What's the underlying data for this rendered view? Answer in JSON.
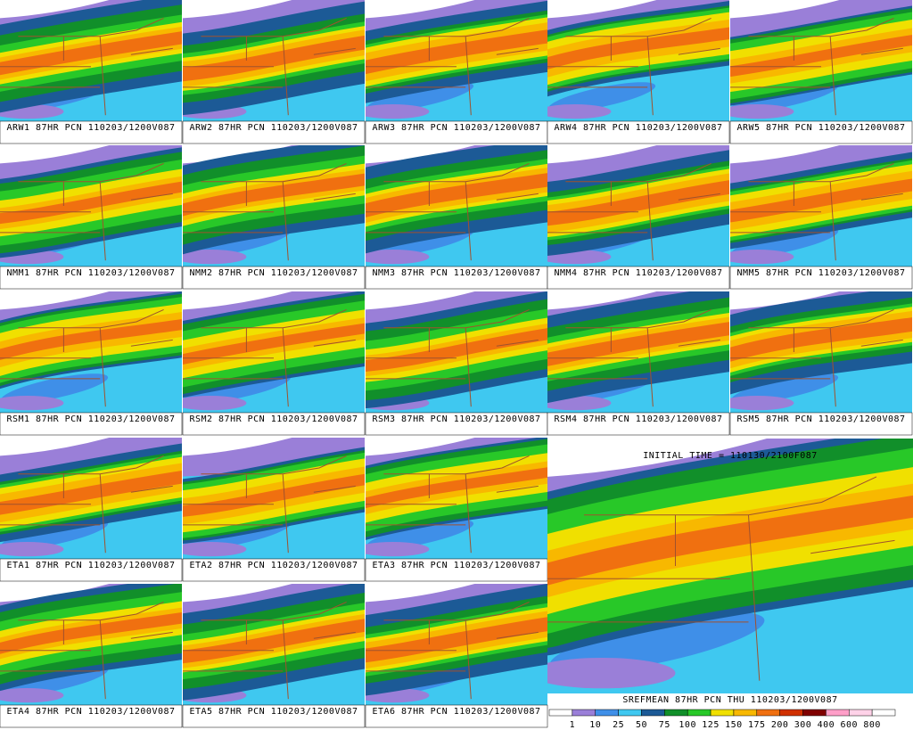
{
  "panels": [
    {
      "label": "ARW1 87HR PCN 110203/1200V087"
    },
    {
      "label": "ARW2 87HR PCN 110203/1200V087"
    },
    {
      "label": "ARW3 87HR PCN 110203/1200V087"
    },
    {
      "label": "ARW4 87HR PCN 110203/1200V087"
    },
    {
      "label": "ARW5 87HR PCN 110203/1200V087"
    },
    {
      "label": "NMM1 87HR PCN 110203/1200V087"
    },
    {
      "label": "NMM2 87HR PCN 110203/1200V087"
    },
    {
      "label": "NMM3 87HR PCN 110203/1200V087"
    },
    {
      "label": "NMM4 87HR PCN 110203/1200V087"
    },
    {
      "label": "NMM5 87HR PCN 110203/1200V087"
    },
    {
      "label": "RSM1 87HR PCN 110203/1200V087"
    },
    {
      "label": "RSM2 87HR PCN 110203/1200V087"
    },
    {
      "label": "RSM3 87HR PCN 110203/1200V087"
    },
    {
      "label": "RSM4 87HR PCN 110203/1200V087"
    },
    {
      "label": "RSM5 87HR PCN 110203/1200V087"
    },
    {
      "label": "ETA1 87HR PCN 110203/1200V087"
    },
    {
      "label": "ETA2 87HR PCN 110203/1200V087"
    },
    {
      "label": "ETA3 87HR PCN 110203/1200V087"
    },
    {
      "label": "ETA4 87HR PCN 110203/1200V087"
    },
    {
      "label": "ETA5 87HR PCN 110203/1200V087"
    },
    {
      "label": "ETA6 87HR PCN 110203/1200V087"
    }
  ],
  "main_panel": {
    "header": "INITIAL TIME = 110130/2100F087",
    "label": "SREFMEAN 87HR PCN THU 110203/1200V087"
  },
  "color_bar": {
    "labels": [
      1,
      10,
      25,
      50,
      75,
      100,
      125,
      150,
      175,
      200,
      300,
      400,
      600,
      800
    ],
    "colors": [
      "#ffffff",
      "#9a7fd8",
      "#3f8fe8",
      "#3fc8f0",
      "#1c5a96",
      "#118f2a",
      "#28c828",
      "#f0e000",
      "#f8b800",
      "#f07010",
      "#d03000",
      "#800000",
      "#ff9ec8",
      "#ffd2e8",
      "#ffffff"
    ]
  }
}
